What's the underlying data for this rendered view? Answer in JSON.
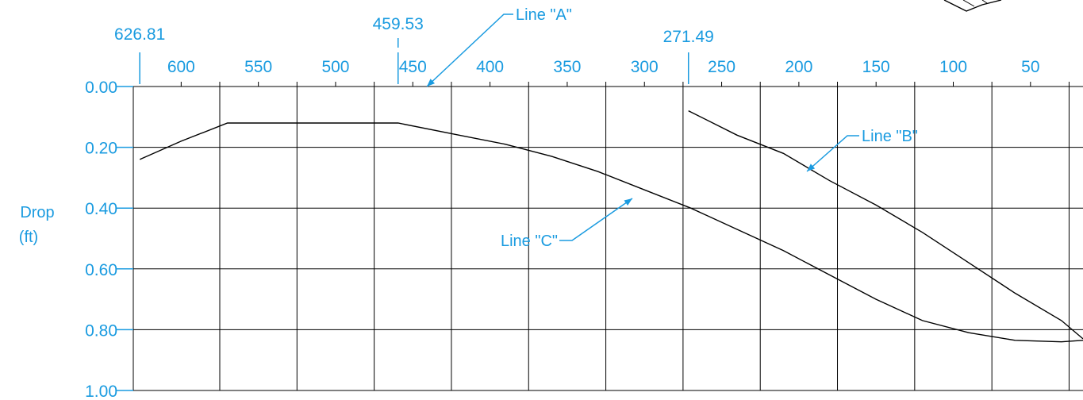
{
  "chart_data": {
    "type": "line",
    "title": "",
    "xlabel": "",
    "ylabel": "Drop\n(ft)",
    "ylabel_lines": [
      "Drop",
      "(ft)"
    ],
    "x_reversed": true,
    "xlim": [
      631,
      16
    ],
    "ylim": [
      0.0,
      1.0
    ],
    "y_inverted": true,
    "grid": true,
    "x_ticks": [
      600,
      550,
      500,
      450,
      400,
      350,
      300,
      250,
      200,
      150,
      100,
      50
    ],
    "x_tick_labels": [
      "600",
      "550",
      "500",
      "450",
      "400",
      "350",
      "300",
      "250",
      "200",
      "150",
      "100",
      "50"
    ],
    "x_minor_ticks": [
      575,
      525,
      475,
      425,
      375,
      325,
      275,
      225,
      175,
      125,
      75,
      25
    ],
    "y_ticks": [
      0.0,
      0.2,
      0.4,
      0.6,
      0.8,
      1.0
    ],
    "y_tick_labels": [
      "0.00",
      "0.20",
      "0.40",
      "0.60",
      "0.80",
      "1.00"
    ],
    "x_gridlines": [
      575,
      525,
      475,
      425,
      375,
      325,
      275,
      225,
      175,
      125,
      75,
      25
    ],
    "y_gridlines": [
      0.2,
      0.4,
      0.6,
      0.8
    ],
    "markers": [
      {
        "x": 626.81,
        "label": "626.81"
      },
      {
        "x": 459.53,
        "label": "459.53"
      },
      {
        "x": 271.49,
        "label": "271.49"
      }
    ],
    "series": [
      {
        "name": "Line \"C\"",
        "x": [
          626.81,
          600,
          570,
          540,
          510,
          480,
          459.53,
          420,
          390,
          360,
          330,
          300,
          270,
          240,
          210,
          180,
          150,
          120,
          90,
          60,
          30,
          16
        ],
        "y": [
          0.24,
          0.18,
          0.12,
          0.12,
          0.12,
          0.12,
          0.12,
          0.16,
          0.19,
          0.23,
          0.28,
          0.34,
          0.4,
          0.47,
          0.54,
          0.62,
          0.7,
          0.77,
          0.81,
          0.835,
          0.84,
          0.835
        ]
      },
      {
        "name": "Line \"B\"",
        "x": [
          271.49,
          240,
          210,
          180,
          150,
          120,
          90,
          60,
          30,
          16
        ],
        "y": [
          0.08,
          0.16,
          0.22,
          0.31,
          0.39,
          0.48,
          0.58,
          0.68,
          0.77,
          0.83
        ]
      }
    ],
    "annotations": [
      {
        "label": "Line \"A\"",
        "x": 432,
        "y": 0.0
      },
      {
        "label": "Line \"B\"",
        "x": 195,
        "y": 0.27
      },
      {
        "label": "Line \"C\"",
        "x": 300,
        "y": 0.36
      }
    ]
  }
}
